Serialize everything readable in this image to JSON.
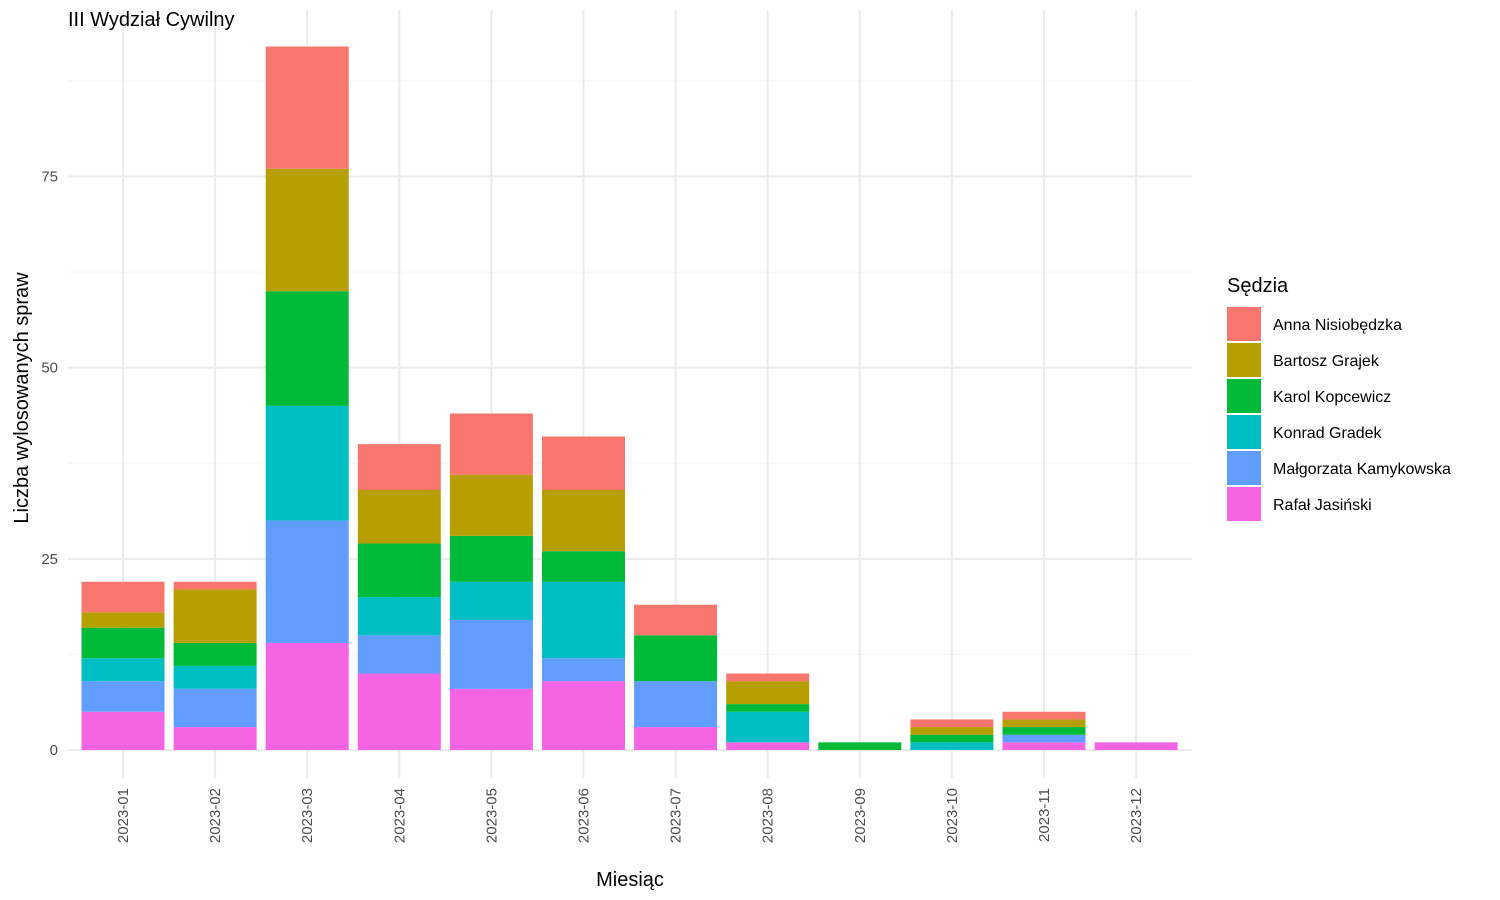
{
  "chart_data": {
    "type": "bar",
    "stacked": true,
    "title": "III Wydział Cywilny",
    "xlabel": "Miesiąc",
    "ylabel": "Liczba wylosowanych spraw",
    "ylim": [
      0,
      95
    ],
    "yticks": [
      0,
      25,
      50,
      75
    ],
    "grid": true,
    "legend_title": "Sędzia",
    "legend_position": "right",
    "categories": [
      "2023-01",
      "2023-02",
      "2023-03",
      "2023-04",
      "2023-05",
      "2023-06",
      "2023-07",
      "2023-08",
      "2023-09",
      "2023-10",
      "2023-11",
      "2023-12"
    ],
    "series": [
      {
        "name": "Rafał Jasiński",
        "color": "#F564E3",
        "values": [
          5,
          3,
          14,
          10,
          8,
          9,
          3,
          1,
          0,
          0,
          1,
          1
        ]
      },
      {
        "name": "Małgorzata Kamykowska",
        "color": "#619CFF",
        "values": [
          4,
          5,
          16,
          5,
          9,
          3,
          6,
          0,
          0,
          0,
          1,
          0
        ]
      },
      {
        "name": "Konrad Gradek",
        "color": "#00BFC4",
        "values": [
          3,
          3,
          15,
          5,
          5,
          10,
          0,
          4,
          0,
          1,
          0,
          0
        ]
      },
      {
        "name": "Karol Kopcewicz",
        "color": "#00BA38",
        "values": [
          4,
          3,
          15,
          7,
          6,
          4,
          6,
          1,
          1,
          1,
          1,
          0
        ]
      },
      {
        "name": "Bartosz Grajek",
        "color": "#B79F00",
        "values": [
          2,
          7,
          16,
          7,
          8,
          8,
          0,
          3,
          0,
          1,
          1,
          0
        ]
      },
      {
        "name": "Anna Nisiobędzka",
        "color": "#F8766D",
        "values": [
          4,
          1,
          16,
          6,
          8,
          7,
          4,
          1,
          0,
          1,
          1,
          0
        ]
      }
    ],
    "legend_order": [
      "Anna Nisiobędzka",
      "Bartosz Grajek",
      "Karol Kopcewicz",
      "Konrad Gradek",
      "Małgorzata Kamykowska",
      "Rafał Jasiński"
    ]
  }
}
